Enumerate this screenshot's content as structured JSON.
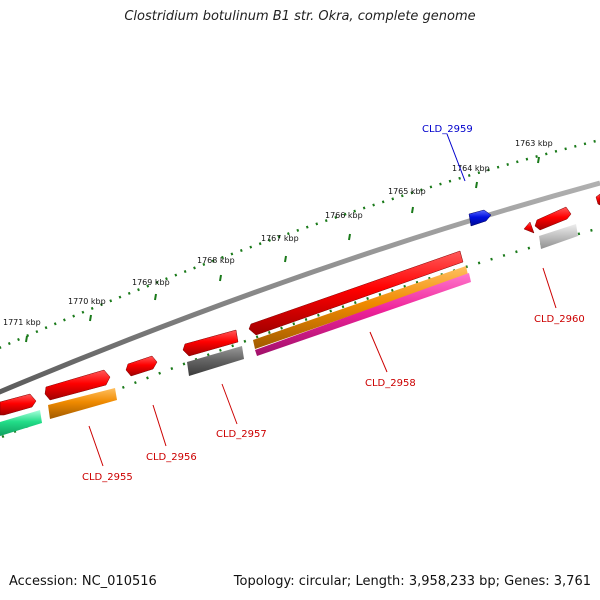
{
  "title": "Clostridium botulinum B1 str. Okra, complete genome",
  "footer": {
    "accession_label": "Accession:",
    "accession": "NC_010516",
    "topology_label": "Topology:",
    "topology": "circular",
    "length_label": "Length:",
    "length": "3,958,233 bp",
    "genes_label": "Genes:",
    "genes": "3,761"
  },
  "ticks": [
    "1771 kbp",
    "1770 kbp",
    "1769 kbp",
    "1768 kbp",
    "1767 kbp",
    "1766 kbp",
    "1765 kbp",
    "1764 kbp",
    "1763 kbp"
  ],
  "gene_labels": [
    {
      "id": "CLD_2959",
      "color": "#0000cc"
    },
    {
      "id": "CLD_2960",
      "color": "#cc0000"
    },
    {
      "id": "CLD_2958",
      "color": "#cc0000"
    },
    {
      "id": "CLD_2957",
      "color": "#cc0000"
    },
    {
      "id": "CLD_2956",
      "color": "#cc0000"
    },
    {
      "id": "CLD_2955",
      "color": "#cc0000"
    }
  ],
  "colors": {
    "backbone": "#8a8a8a",
    "tick": "#1a7a1a",
    "gene_red": "#e00000",
    "gene_blue": "#0010e0",
    "gene_orange": "#f08a00",
    "gene_magenta": "#ee2299",
    "gene_gray": "#6a6a6a",
    "gene_lightgray": "#c0c0c0",
    "gene_green": "#22dd88"
  }
}
